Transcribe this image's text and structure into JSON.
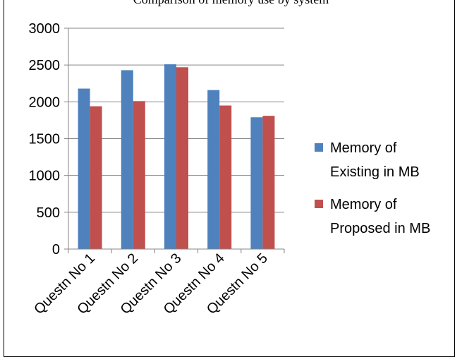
{
  "caption": "Comparison of memory use by system",
  "chart_data": {
    "type": "bar",
    "title": "",
    "xlabel": "",
    "ylabel": "",
    "categories": [
      "Questn No 1",
      "Questn No 2",
      "Questn No 3",
      "Questn No 4",
      "Questn No 5"
    ],
    "series": [
      {
        "name": "Memory of Existing in MB",
        "legend_lines": [
          "Memory of",
          "Existing in MB"
        ],
        "color": "#4F81BD",
        "values": [
          2180,
          2430,
          2510,
          2160,
          1790
        ]
      },
      {
        "name": "Memory of Proposed in MB",
        "legend_lines": [
          "Memory of",
          "Proposed in MB"
        ],
        "color": "#C0504D",
        "values": [
          1940,
          2010,
          2470,
          1950,
          1810
        ]
      }
    ],
    "ylim": [
      0,
      3000
    ],
    "yticks": [
      0,
      500,
      1000,
      1500,
      2000,
      2500,
      3000
    ],
    "grid": true,
    "legend": "right"
  }
}
